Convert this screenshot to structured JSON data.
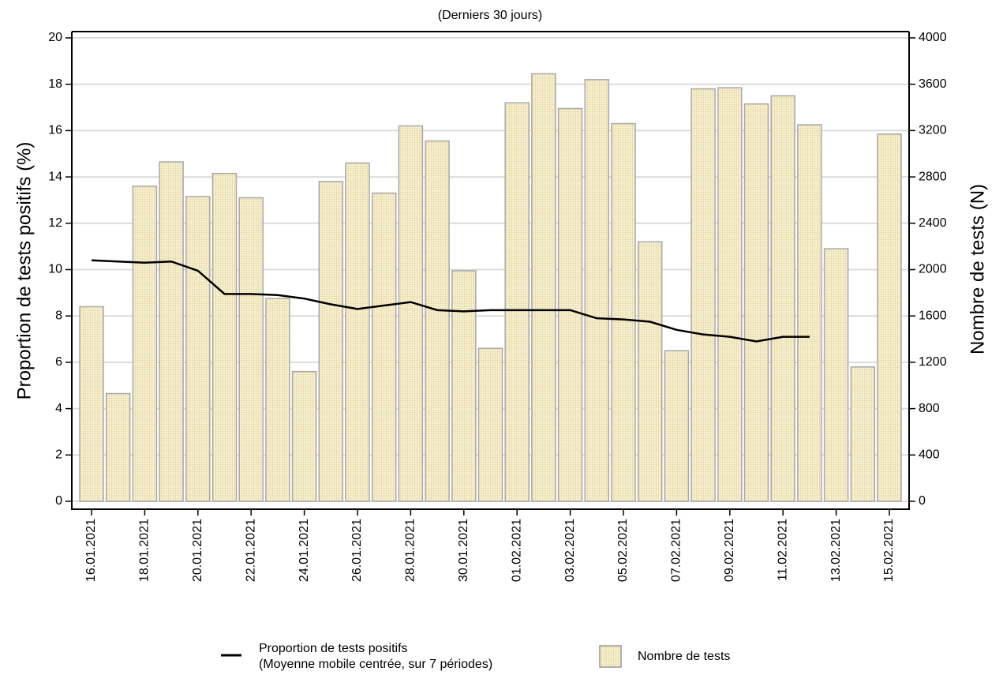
{
  "chart_data": {
    "type": "bar_line",
    "title": "(Derniers 30 jours)",
    "ylabel": "Proportion de tests positifs (%)",
    "y2label": "Nombre de tests (N)",
    "categories": [
      "16.01.2021",
      null,
      "18.01.2021",
      null,
      "20.01.2021",
      null,
      "22.01.2021",
      null,
      "24.01.2021",
      null,
      "26.01.2021",
      null,
      "28.01.2021",
      null,
      "30.01.2021",
      null,
      "01.02.2021",
      null,
      "03.02.2021",
      null,
      "05.02.2021",
      null,
      "07.02.2021",
      null,
      "09.02.2021",
      null,
      "11.02.2021",
      null,
      "13.02.2021",
      null,
      "15.02.2021"
    ],
    "series": [
      {
        "name": "Proportion de tests positifs\n(Moyenne mobile centrée, sur 7 périodes)",
        "type": "line",
        "color": "#000000",
        "values": [
          10.4,
          10.35,
          10.3,
          10.35,
          9.95,
          8.95,
          8.95,
          8.9,
          8.75,
          8.5,
          8.3,
          8.45,
          8.6,
          8.25,
          8.2,
          8.25,
          8.25,
          8.25,
          8.25,
          7.9,
          7.85,
          7.75,
          7.4,
          7.2,
          7.1,
          6.9,
          7.1,
          7.1,
          null,
          null,
          null
        ]
      },
      {
        "name": "Nombre de tests",
        "type": "bar",
        "axis": "y2",
        "color": "#f5edc8",
        "values": [
          1680,
          930,
          2720,
          2930,
          2630,
          2830,
          2620,
          1750,
          1120,
          2760,
          2920,
          2660,
          3240,
          3110,
          1990,
          1320,
          3440,
          3690,
          3390,
          3640,
          3260,
          2240,
          1300,
          3560,
          3570,
          3430,
          3500,
          3250,
          2180,
          1160,
          3170
        ]
      }
    ],
    "ylim": [
      0,
      20
    ],
    "yticks": [
      0,
      2,
      4,
      6,
      8,
      10,
      12,
      14,
      16,
      18,
      20
    ],
    "y2lim": [
      0,
      4000
    ],
    "y2ticks": [
      0,
      400,
      800,
      1200,
      1600,
      2000,
      2400,
      2800,
      3200,
      3600,
      4000
    ],
    "grid": true
  }
}
